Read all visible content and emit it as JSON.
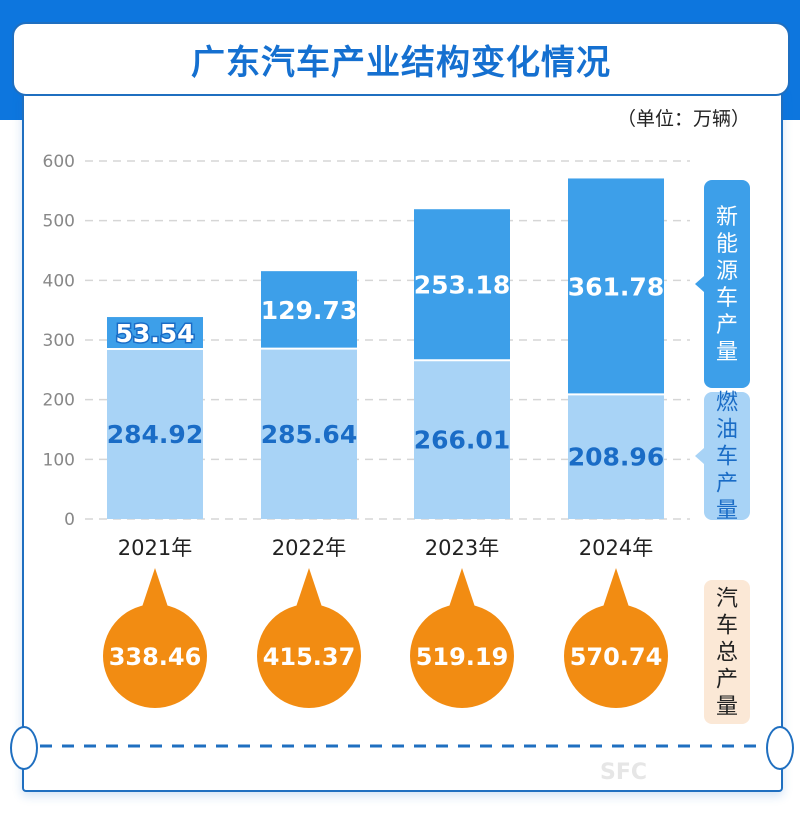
{
  "title": "广东汽车产业结构变化情况",
  "unit": "（单位：万辆）",
  "watermark": "SFC",
  "colors": {
    "nev": "#3d9fe9",
    "fuel": "#a8d3f6",
    "label": "#1a6cc6",
    "total": "#f28c12",
    "total_legend_bg": "#fbe8d6"
  },
  "chart_data": {
    "type": "bar",
    "stacked": true,
    "categories": [
      "2021年",
      "2022年",
      "2023年",
      "2024年"
    ],
    "ylim": [
      0,
      600
    ],
    "yticks": [
      0,
      100,
      200,
      300,
      400,
      500,
      600
    ],
    "grid": true,
    "series": [
      {
        "name": "燃油车产量",
        "values": [
          284.92,
          285.64,
          266.01,
          208.96
        ],
        "labels": [
          "284.92",
          "285.64",
          "266.01",
          "208.96"
        ]
      },
      {
        "name": "新能源车产量",
        "values": [
          53.54,
          129.73,
          253.18,
          361.78
        ],
        "labels": [
          "53.54",
          "129.73",
          "253.18",
          "361.78"
        ]
      }
    ],
    "totals": {
      "name": "汽车总产量",
      "values": [
        338.46,
        415.37,
        519.19,
        570.74
      ],
      "labels": [
        "338.46",
        "415.37",
        "519.19",
        "570.74"
      ]
    },
    "legend_placement": "right"
  }
}
